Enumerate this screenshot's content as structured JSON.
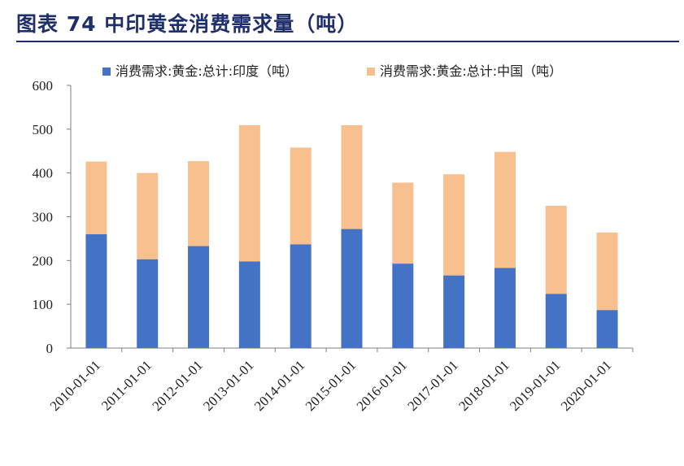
{
  "header": {
    "title": "图表 74  中印黄金消费需求量（吨）"
  },
  "chart_data": {
    "type": "bar",
    "stacked": true,
    "title": "图表 74  中印黄金消费需求量（吨）",
    "categories": [
      "2010-01-01",
      "2011-01-01",
      "2012-01-01",
      "2013-01-01",
      "2014-01-01",
      "2015-01-01",
      "2016-01-01",
      "2017-01-01",
      "2018-01-01",
      "2019-01-01",
      "2020-01-01"
    ],
    "series": [
      {
        "name": "消费需求:黄金:总计:印度（吨）",
        "color": "#4472c4",
        "values": [
          260,
          203,
          233,
          198,
          237,
          272,
          193,
          166,
          183,
          124,
          87
        ]
      },
      {
        "name": "消费需求:黄金:总计:中国（吨）",
        "color": "#f8c08e",
        "values": [
          166,
          197,
          194,
          311,
          221,
          237,
          185,
          231,
          265,
          201,
          177
        ]
      }
    ],
    "ylim": [
      0,
      600
    ],
    "yticks": [
      0,
      100,
      200,
      300,
      400,
      500,
      600
    ],
    "xlabel": "",
    "ylabel": "",
    "legend": "top",
    "grid": false
  }
}
